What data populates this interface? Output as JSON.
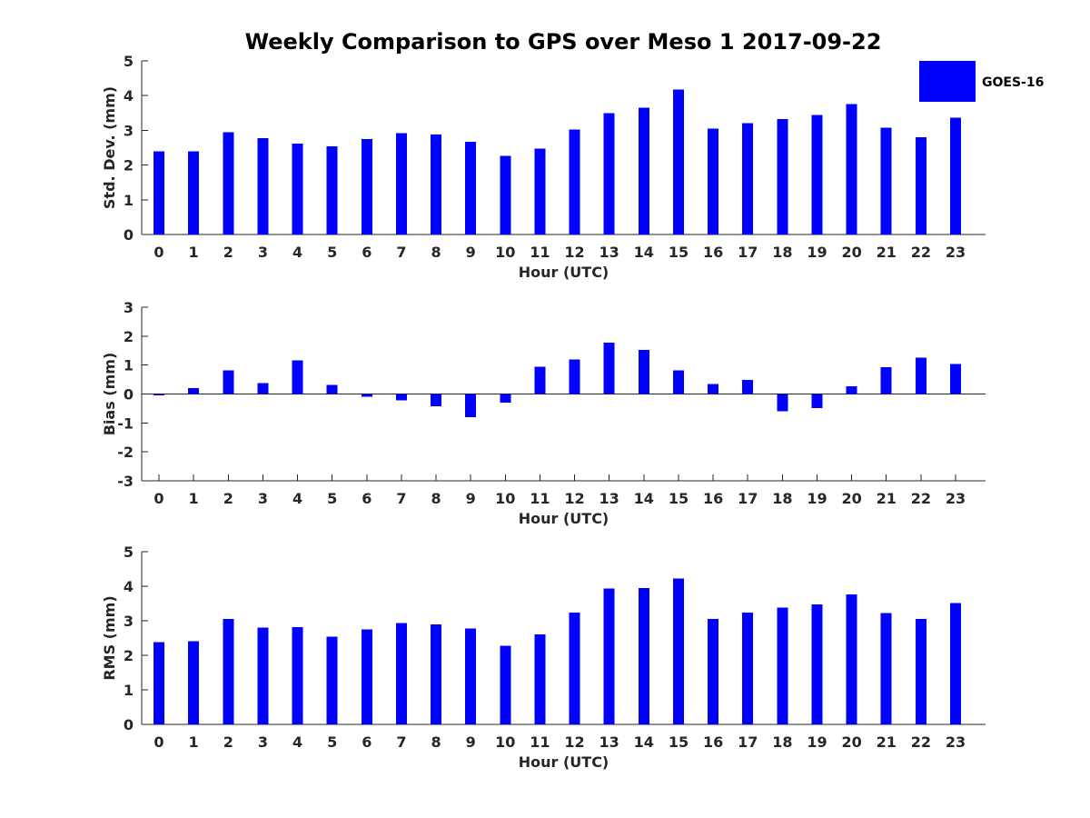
{
  "figure": {
    "title": "Weekly Comparison to GPS over Meso 1 2017-09-22"
  },
  "legend": {
    "label": "GOES-16",
    "color": "#0000ff"
  },
  "chart_data": [
    {
      "type": "bar",
      "name": "std-dev",
      "title": "Weekly Comparison to GPS over Meso 1 2017-09-22",
      "xlabel": "Hour (UTC)",
      "ylabel": "Std. Dev. (mm)",
      "ylim": [
        0,
        5
      ],
      "yticks": [
        0,
        1,
        2,
        3,
        4,
        5
      ],
      "categories": [
        "0",
        "1",
        "2",
        "3",
        "4",
        "5",
        "6",
        "7",
        "8",
        "9",
        "10",
        "11",
        "12",
        "13",
        "14",
        "15",
        "16",
        "17",
        "18",
        "19",
        "20",
        "21",
        "22",
        "23"
      ],
      "series": [
        {
          "name": "GOES-16",
          "color": "#0000ff",
          "values": [
            2.4,
            2.4,
            2.95,
            2.77,
            2.62,
            2.54,
            2.75,
            2.92,
            2.88,
            2.67,
            2.27,
            2.48,
            3.03,
            3.5,
            3.65,
            4.17,
            3.05,
            3.21,
            3.32,
            3.44,
            3.76,
            3.08,
            2.8,
            3.37
          ]
        }
      ]
    },
    {
      "type": "bar",
      "name": "bias",
      "xlabel": "Hour (UTC)",
      "ylabel": "Bias (mm)",
      "ylim": [
        -3,
        3
      ],
      "yticks": [
        -3,
        -2,
        -1,
        0,
        1,
        2,
        3
      ],
      "baseline": 0,
      "categories": [
        "0",
        "1",
        "2",
        "3",
        "4",
        "5",
        "6",
        "7",
        "8",
        "9",
        "10",
        "11",
        "12",
        "13",
        "14",
        "15",
        "16",
        "17",
        "18",
        "19",
        "20",
        "21",
        "22",
        "23"
      ],
      "series": [
        {
          "name": "GOES-16",
          "color": "#0000ff",
          "values": [
            -0.05,
            0.2,
            0.82,
            0.37,
            1.16,
            0.32,
            -0.1,
            -0.22,
            -0.42,
            -0.8,
            -0.3,
            0.95,
            1.2,
            1.77,
            1.52,
            0.82,
            0.35,
            0.48,
            -0.6,
            -0.48,
            0.26,
            0.92,
            1.26,
            1.03
          ]
        }
      ]
    },
    {
      "type": "bar",
      "name": "rms",
      "xlabel": "Hour (UTC)",
      "ylabel": "RMS (mm)",
      "ylim": [
        0,
        5
      ],
      "yticks": [
        0,
        1,
        2,
        3,
        4,
        5
      ],
      "categories": [
        "0",
        "1",
        "2",
        "3",
        "4",
        "5",
        "6",
        "7",
        "8",
        "9",
        "10",
        "11",
        "12",
        "13",
        "14",
        "15",
        "16",
        "17",
        "18",
        "19",
        "20",
        "21",
        "22",
        "23"
      ],
      "series": [
        {
          "name": "GOES-16",
          "color": "#0000ff",
          "values": [
            2.38,
            2.41,
            3.05,
            2.8,
            2.82,
            2.54,
            2.75,
            2.93,
            2.9,
            2.77,
            2.28,
            2.61,
            3.24,
            3.93,
            3.95,
            4.23,
            3.05,
            3.24,
            3.38,
            3.47,
            3.76,
            3.22,
            3.05,
            3.51
          ]
        }
      ]
    }
  ]
}
